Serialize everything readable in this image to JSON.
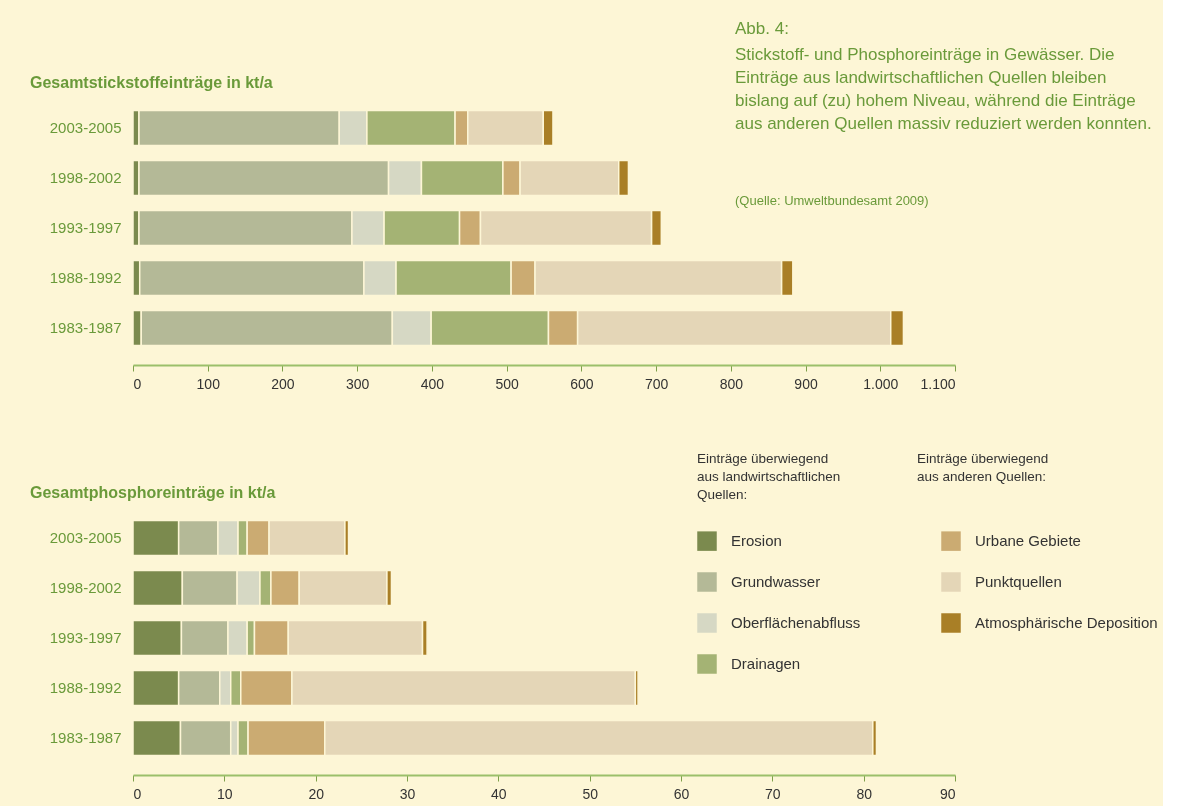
{
  "chart_data": [
    {
      "type": "bar",
      "orientation": "horizontal",
      "stacked": true,
      "title": "Gesamtstickstoffeinträge in kt/a",
      "categories": [
        "2003-2005",
        "1998-2002",
        "1993-1997",
        "1988-1992",
        "1983-1987"
      ],
      "series": [
        {
          "name": "Erosion",
          "color": "#7b8a4e",
          "values": [
            8,
            8,
            8,
            9,
            11
          ]
        },
        {
          "name": "Grundwasser",
          "color": "#b4b997",
          "values": [
            268,
            334,
            285,
            300,
            336
          ]
        },
        {
          "name": "Oberflächenabfluss",
          "color": "#d6d8c4",
          "values": [
            37,
            44,
            43,
            43,
            52
          ]
        },
        {
          "name": "Drainagen",
          "color": "#a4b374",
          "values": [
            118,
            109,
            101,
            154,
            157
          ]
        },
        {
          "name": "Urbane Gebiete",
          "color": "#cbab72",
          "values": [
            17,
            23,
            28,
            32,
            39
          ]
        },
        {
          "name": "Punktquellen",
          "color": "#e4d6b7",
          "values": [
            101,
            132,
            229,
            330,
            419
          ]
        },
        {
          "name": "Atmosphärische Deposition",
          "color": "#a97f26",
          "values": [
            13,
            13,
            13,
            15,
            17
          ]
        }
      ],
      "xlim": [
        0,
        1100
      ],
      "xticks": [
        0,
        100,
        200,
        300,
        400,
        500,
        600,
        700,
        800,
        900,
        {
          "value": 1000,
          "label": "1.000"
        },
        {
          "value": 1100,
          "label": "1.100"
        }
      ],
      "grid": false,
      "legend": "bottom right",
      "annotations": [
        "Abb. 4:",
        "Stickstoff- und Phosphoreinträge in Gewässer. Die Einträge aus landwirtschaftlichen Quellen bleiben bislang auf (zu) hohem Niveau, während die Einträge aus anderen Quellen massiv reduziert werden konnten.",
        "(Quelle: Umweltbundesamt 2009)"
      ]
    },
    {
      "type": "bar",
      "orientation": "horizontal",
      "stacked": true,
      "title": "Gesamtphosphoreinträge in kt/a",
      "categories": [
        "2003-2005",
        "1998-2002",
        "1993-1997",
        "1988-1992",
        "1983-1987"
      ],
      "series": [
        {
          "color": "#7b8a4e",
          "values": [
            5.0,
            5.4,
            5.3,
            5.0,
            5.2
          ]
        },
        {
          "color": "#b4b997",
          "values": [
            4.3,
            6.0,
            5.1,
            4.5,
            5.5
          ]
        },
        {
          "color": "#d6d8c4",
          "values": [
            2.2,
            2.5,
            2.1,
            1.2,
            0.8
          ]
        },
        {
          "color": "#a4b374",
          "values": [
            1.0,
            1.2,
            0.8,
            1.1,
            1.1
          ]
        },
        {
          "color": "#cbab72",
          "values": [
            2.4,
            3.1,
            3.7,
            5.6,
            8.4
          ]
        },
        {
          "color": "#e4d6b7",
          "values": [
            8.3,
            9.6,
            14.7,
            37.6,
            60.0
          ]
        },
        {
          "color": "#a97f26",
          "values": [
            0.4,
            0.5,
            0.5,
            0.3,
            0.4
          ]
        }
      ],
      "xlim": [
        0,
        90
      ],
      "xticks": [
        0,
        10,
        20,
        30,
        40,
        50,
        60,
        70,
        80,
        90
      ],
      "grid": false,
      "annotations": [
        "Einträge überwiegend\naus landwirtschaftlichen\nQuellen:",
        "Einträge überwiegend\naus anderen Quellen:"
      ]
    }
  ]
}
